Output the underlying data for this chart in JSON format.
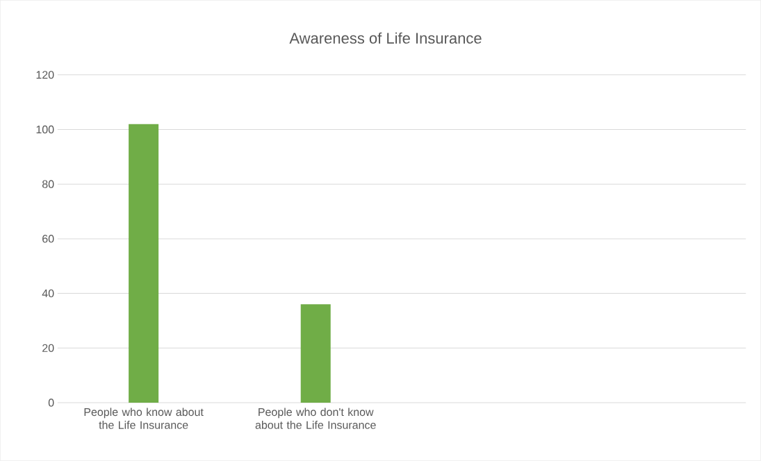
{
  "chart_data": {
    "type": "bar",
    "title": "Awareness of Life Insurance",
    "categories": [
      "People who know about the Life Insurance",
      "People who don't know about the Life Insurance",
      null,
      null
    ],
    "values": [
      102,
      36,
      null,
      null
    ],
    "color": "#70ad47",
    "ylim": [
      0,
      120
    ],
    "yticks": [
      0,
      20,
      40,
      60,
      80,
      100,
      120
    ],
    "grid": "y"
  }
}
